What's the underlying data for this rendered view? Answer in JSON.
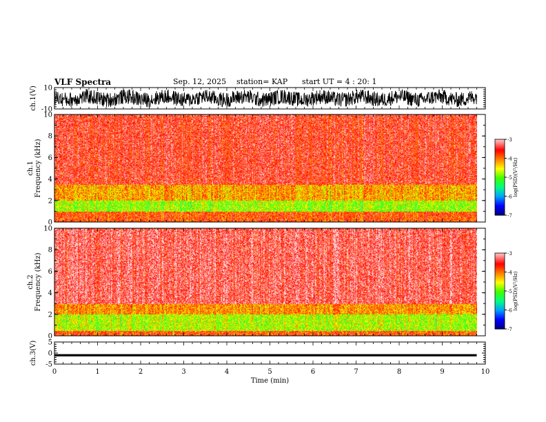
{
  "header": {
    "title": "VLF Spectra",
    "date": "Sep. 12, 2025",
    "station": "station= KAP",
    "start": "start UT =  4 : 20: 1"
  },
  "colorscale": {
    "stops": [
      "#000080",
      "#0000ff",
      "#00a0ff",
      "#00ff80",
      "#40ff00",
      "#ffff00",
      "#ff8000",
      "#ff0000",
      "#ffb0b0",
      "#ffffff"
    ]
  },
  "chart_data": [
    {
      "type": "line",
      "name": "ch1-waveform",
      "ylabel": "ch.1(V)",
      "ylim": [
        -10,
        10
      ],
      "yticks": [
        "10",
        "-10"
      ],
      "x_range_min": [
        0,
        9.8
      ],
      "description_level": "noisy trace between about -7 and 7 V"
    },
    {
      "type": "heatmap",
      "name": "ch1-spectrogram",
      "ylabel": "ch.1  Frequency (kHz)",
      "ylim": [
        0,
        10
      ],
      "yticks": [
        "0",
        "2",
        "4",
        "6",
        "8",
        "10"
      ],
      "colorbar": {
        "label": "log(PSD)(V²/Hz)",
        "range": [
          -7,
          -3
        ],
        "ticks": [
          "-3",
          "-4",
          "-5",
          "-6",
          "-7"
        ]
      },
      "bands": [
        {
          "from_khz": 0.0,
          "to_khz": 1.0,
          "log_psd": -3.8
        },
        {
          "from_khz": 1.0,
          "to_khz": 2.0,
          "log_psd": -4.8
        },
        {
          "from_khz": 2.0,
          "to_khz": 3.5,
          "log_psd": -4.2
        },
        {
          "from_khz": 3.5,
          "to_khz": 10.0,
          "log_psd": -3.5
        }
      ]
    },
    {
      "type": "heatmap",
      "name": "ch2-spectrogram",
      "ylabel": "ch.2  Frequency (kHz)",
      "ylim": [
        0,
        10
      ],
      "yticks": [
        "0",
        "2",
        "4",
        "6",
        "8",
        "10"
      ],
      "colorbar": {
        "label": "log(PSD)(V²/Hz)",
        "range": [
          -7,
          -3
        ],
        "ticks": [
          "-3",
          "-4",
          "-5",
          "-6",
          "-7"
        ]
      },
      "bands": [
        {
          "from_khz": 0.0,
          "to_khz": 0.5,
          "log_psd": -3.8
        },
        {
          "from_khz": 0.5,
          "to_khz": 2.0,
          "log_psd": -4.7
        },
        {
          "from_khz": 2.0,
          "to_khz": 3.0,
          "log_psd": -4.1
        },
        {
          "from_khz": 3.0,
          "to_khz": 10.0,
          "log_psd": -3.3
        }
      ]
    },
    {
      "type": "line",
      "name": "ch3-waveform",
      "ylabel": "ch.3(V)",
      "ylim": [
        -5,
        5
      ],
      "yticks": [
        "5",
        "0",
        "-5"
      ],
      "level_band_v": [
        -1.5,
        -0.5
      ]
    }
  ],
  "time_axis": {
    "label": "Time (min)",
    "range": [
      0,
      10
    ],
    "ticks": [
      "0",
      "1",
      "2",
      "3",
      "4",
      "5",
      "6",
      "7",
      "8",
      "9",
      "10"
    ],
    "data_end_min": 9.8
  }
}
